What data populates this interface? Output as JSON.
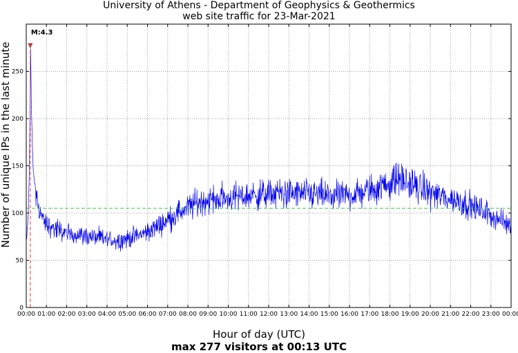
{
  "chart_data": {
    "type": "line",
    "title": "University of Athens - Department of Geophysics & Geothermics",
    "subtitle": "web site traffic for 23-Mar-2021",
    "xlabel": "Hour of day (UTC)",
    "ylabel": "Number of unique IPs in the last minute",
    "footer": "max 277 visitors at 00:13 UTC",
    "xlim": [
      0,
      24
    ],
    "ylim": [
      0,
      300
    ],
    "yticks": [
      0,
      50,
      100,
      150,
      200,
      250
    ],
    "xticks": [
      "00:00",
      "01:00",
      "02:00",
      "03:00",
      "04:00",
      "05:00",
      "06:00",
      "07:00",
      "08:00",
      "09:00",
      "10:00",
      "11:00",
      "12:00",
      "13:00",
      "14:00",
      "15:00",
      "16:00",
      "17:00",
      "18:00",
      "19:00",
      "20:00",
      "21:00",
      "22:00",
      "23:00",
      "00:00"
    ],
    "grid": true,
    "mean_line": {
      "value": 105,
      "color": "#33cc33"
    },
    "earthquake_marker": {
      "label": "M:4.3",
      "hour": 0.2,
      "color": "#ff3333"
    },
    "series": [
      {
        "name": "unique IPs per minute",
        "color": "#0000ee",
        "hours": [
          0,
          0.05,
          0.1,
          0.15,
          0.2,
          0.217,
          0.25,
          0.3,
          0.35,
          0.4,
          0.45,
          0.5,
          0.6,
          0.7,
          0.8,
          0.9,
          1.0,
          1.25,
          1.5,
          1.75,
          2.0,
          2.5,
          3.0,
          3.5,
          4.0,
          4.5,
          5.0,
          5.5,
          6.0,
          6.5,
          7.0,
          7.5,
          8.0,
          8.5,
          9.0,
          9.5,
          10.0,
          10.5,
          11.0,
          11.5,
          12.0,
          12.5,
          13.0,
          13.5,
          14.0,
          14.5,
          15.0,
          15.5,
          16.0,
          16.5,
          17.0,
          17.5,
          18.0,
          18.5,
          19.0,
          19.5,
          20.0,
          20.5,
          21.0,
          21.5,
          22.0,
          22.5,
          23.0,
          23.5,
          24.0
        ],
        "values": [
          70,
          80,
          100,
          140,
          230,
          277,
          220,
          170,
          145,
          135,
          125,
          118,
          108,
          100,
          95,
          90,
          88,
          85,
          82,
          80,
          79,
          77,
          76,
          74,
          72,
          71,
          73,
          76,
          80,
          86,
          93,
          100,
          106,
          111,
          114,
          115,
          116,
          117,
          118,
          119,
          120,
          121,
          121,
          120,
          120,
          119,
          118,
          118,
          119,
          121,
          124,
          127,
          132,
          137,
          131,
          126,
          122,
          118,
          115,
          112,
          108,
          103,
          98,
          92,
          86
        ]
      }
    ]
  }
}
